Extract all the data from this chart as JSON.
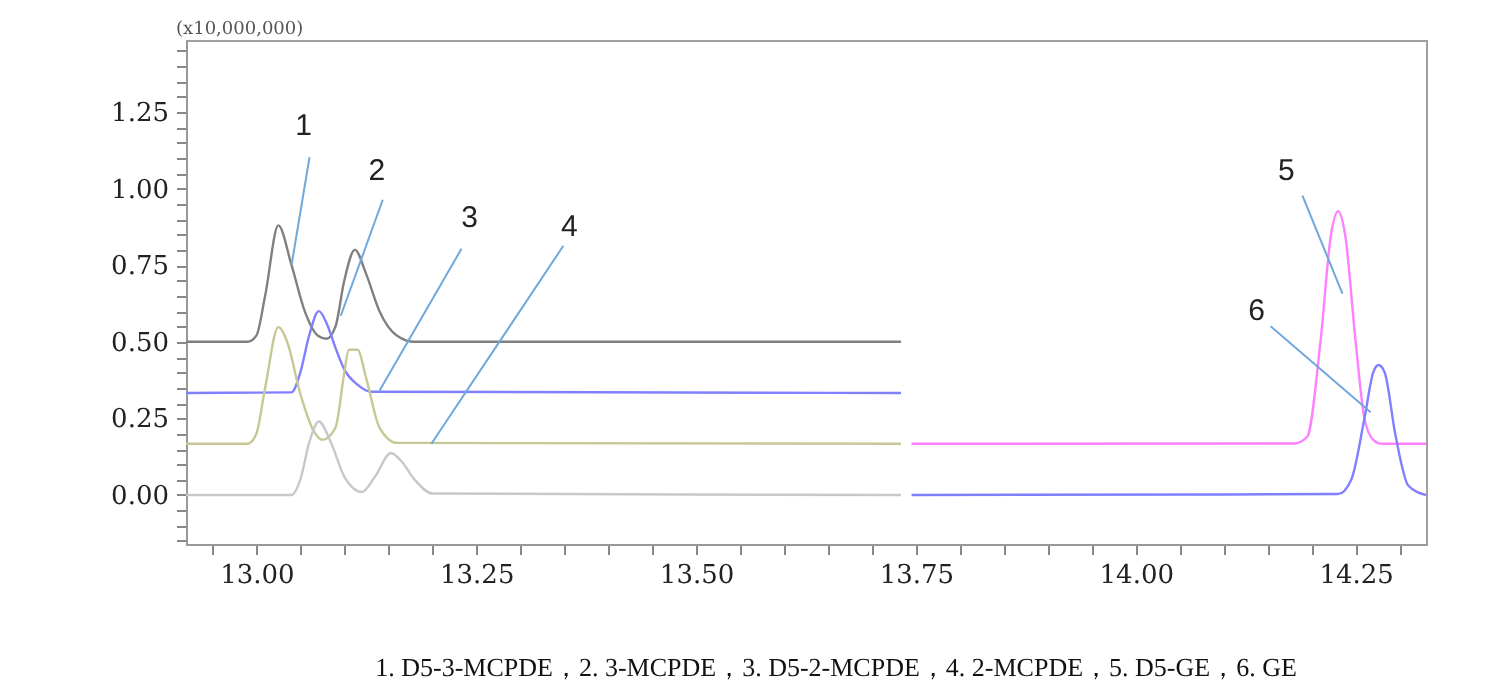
{
  "chart_data": {
    "type": "line",
    "xlim": [
      12.92,
      14.33
    ],
    "ylim": [
      -0.16,
      1.485
    ],
    "xticks": [
      {
        "value": 12.95,
        "label": null
      },
      {
        "value": 13.0,
        "label": "13.00"
      },
      {
        "value": 13.05,
        "label": null
      },
      {
        "value": 13.1,
        "label": null
      },
      {
        "value": 13.15,
        "label": null
      },
      {
        "value": 13.2,
        "label": null
      },
      {
        "value": 13.25,
        "label": "13.25"
      },
      {
        "value": 13.3,
        "label": null
      },
      {
        "value": 13.35,
        "label": null
      },
      {
        "value": 13.4,
        "label": null
      },
      {
        "value": 13.45,
        "label": null
      },
      {
        "value": 13.5,
        "label": "13.50"
      },
      {
        "value": 13.55,
        "label": null
      },
      {
        "value": 13.6,
        "label": null
      },
      {
        "value": 13.65,
        "label": null
      },
      {
        "value": 13.7,
        "label": null
      },
      {
        "value": 13.75,
        "label": "13.75"
      },
      {
        "value": 13.8,
        "label": null
      },
      {
        "value": 13.85,
        "label": null
      },
      {
        "value": 13.9,
        "label": null
      },
      {
        "value": 13.95,
        "label": null
      },
      {
        "value": 14.0,
        "label": "14.00"
      },
      {
        "value": 14.05,
        "label": null
      },
      {
        "value": 14.1,
        "label": null
      },
      {
        "value": 14.15,
        "label": null
      },
      {
        "value": 14.2,
        "label": null
      },
      {
        "value": 14.25,
        "label": "14.25"
      },
      {
        "value": 14.3,
        "label": null
      }
    ],
    "yticks": [
      {
        "value": -0.15,
        "label": null
      },
      {
        "value": -0.1,
        "label": null
      },
      {
        "value": -0.05,
        "label": null
      },
      {
        "value": 0,
        "label": "0.00"
      },
      {
        "value": 0.05,
        "label": null
      },
      {
        "value": 0.1,
        "label": null
      },
      {
        "value": 0.15,
        "label": null
      },
      {
        "value": 0.2,
        "label": null
      },
      {
        "value": 0.25,
        "label": "0.25"
      },
      {
        "value": 0.3,
        "label": null
      },
      {
        "value": 0.35,
        "label": null
      },
      {
        "value": 0.4,
        "label": null
      },
      {
        "value": 0.45,
        "label": null
      },
      {
        "value": 0.5,
        "label": "0.50"
      },
      {
        "value": 0.55,
        "label": null
      },
      {
        "value": 0.6,
        "label": null
      },
      {
        "value": 0.65,
        "label": null
      },
      {
        "value": 0.7,
        "label": null
      },
      {
        "value": 0.75,
        "label": "0.75"
      },
      {
        "value": 0.8,
        "label": null
      },
      {
        "value": 0.85,
        "label": null
      },
      {
        "value": 0.9,
        "label": null
      },
      {
        "value": 0.95,
        "label": null
      },
      {
        "value": 1.0,
        "label": "1.00"
      },
      {
        "value": 1.05,
        "label": null
      },
      {
        "value": 1.1,
        "label": null
      },
      {
        "value": 1.15,
        "label": null
      },
      {
        "value": 1.2,
        "label": null
      },
      {
        "value": 1.25,
        "label": "1.25"
      },
      {
        "value": 1.3,
        "label": null
      },
      {
        "value": 1.35,
        "label": null
      },
      {
        "value": 1.4,
        "label": null
      },
      {
        "value": 1.45,
        "label": null
      }
    ],
    "grid": false,
    "marker": "none",
    "line_style": "solid",
    "series": [
      {
        "color": "#808080",
        "x": [
          12.92,
          12.99,
          13.0,
          13.01,
          13.025,
          13.04,
          13.055,
          13.07,
          13.08,
          13.09,
          13.1,
          13.112,
          13.125,
          13.14,
          13.16,
          13.18,
          13.733
        ],
        "values": [
          0.5,
          0.5,
          0.52,
          0.65,
          0.88,
          0.75,
          0.6,
          0.52,
          0.51,
          0.55,
          0.7,
          0.8,
          0.72,
          0.6,
          0.52,
          0.5,
          0.5
        ]
      },
      {
        "color": "#8080ff",
        "x": [
          12.92,
          13.04,
          13.05,
          13.06,
          13.071,
          13.08,
          13.09,
          13.1,
          13.115,
          13.13,
          13.733
        ],
        "values": [
          0.333,
          0.335,
          0.4,
          0.52,
          0.6,
          0.56,
          0.48,
          0.41,
          0.36,
          0.337,
          0.333
        ]
      },
      {
        "color": "#c8c896",
        "x": [
          12.92,
          12.99,
          13.0,
          13.01,
          13.025,
          13.035,
          13.05,
          13.065,
          13.075,
          13.09,
          13.1,
          13.105,
          13.115,
          13.125,
          13.14,
          13.16,
          13.733
        ],
        "values": [
          0.167,
          0.167,
          0.2,
          0.35,
          0.548,
          0.5,
          0.33,
          0.21,
          0.18,
          0.22,
          0.4,
          0.474,
          0.474,
          0.38,
          0.22,
          0.17,
          0.167
        ]
      },
      {
        "color": "#c8c8c8",
        "x": [
          12.92,
          13.04,
          13.05,
          13.06,
          13.071,
          13.085,
          13.1,
          13.12,
          13.135,
          13.153,
          13.165,
          13.18,
          13.2,
          13.733
        ],
        "values": [
          0,
          0,
          0.05,
          0.17,
          0.24,
          0.17,
          0.06,
          0.01,
          0.06,
          0.137,
          0.11,
          0.05,
          0.005,
          0
        ]
      },
      {
        "color": "#ff80ff",
        "x": [
          13.745,
          14.18,
          14.195,
          14.21,
          14.222,
          14.23,
          14.238,
          14.25,
          14.26,
          14.27,
          14.28,
          14.33
        ],
        "values": [
          0.167,
          0.168,
          0.19,
          0.5,
          0.85,
          0.926,
          0.85,
          0.5,
          0.25,
          0.18,
          0.167,
          0.167
        ]
      },
      {
        "color": "#8080ff",
        "x": [
          13.745,
          14.23,
          14.245,
          14.26,
          14.27,
          14.276,
          14.283,
          14.295,
          14.31,
          14.33
        ],
        "values": [
          0,
          0.003,
          0.05,
          0.25,
          0.4,
          0.424,
          0.4,
          0.2,
          0.03,
          0
        ]
      }
    ],
    "annotations": [
      "(x10,000,000)",
      {
        "text": "1",
        "x": 13.04,
        "y": 0.75
      },
      {
        "text": "2",
        "x": 13.096,
        "y": 0.585
      },
      {
        "text": "3",
        "x": 13.14,
        "y": 0.34
      },
      {
        "text": "4",
        "x": 13.199,
        "y": 0.167
      },
      {
        "text": "5",
        "x": 14.235,
        "y": 0.657
      },
      {
        "text": "6",
        "x": 14.267,
        "y": 0.27
      },
      "1. D5-3-MCPDE，2. 3-MCPDE，3. D5-2-MCPDE，4. 2-MCPDE，5. D5-GE，6. GE"
    ]
  }
}
